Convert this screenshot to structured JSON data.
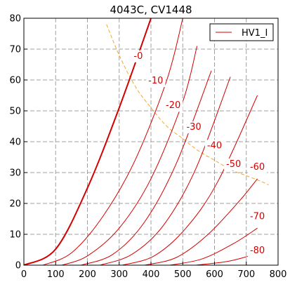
{
  "chart_data": {
    "type": "line",
    "title": "4043C, CV1448",
    "xlabel": "",
    "ylabel": "",
    "xlim": [
      0,
      800
    ],
    "ylim": [
      0,
      80
    ],
    "x_ticks": [
      0,
      100,
      200,
      300,
      400,
      500,
      600,
      700,
      800
    ],
    "y_ticks": [
      0,
      10,
      20,
      30,
      40,
      50,
      60,
      70,
      80
    ],
    "grid": true,
    "legend": {
      "position": "top-right",
      "entries": [
        "HV1_I"
      ]
    },
    "colors": {
      "curve": "#d40000",
      "dissipation": "#f0a830",
      "grid": "#a0a0a0"
    },
    "series": [
      {
        "label": "-0",
        "x": [
          0,
          100,
          200,
          300,
          400
        ],
        "y": [
          0,
          5.2,
          25,
          51,
          80
        ],
        "label_pos": [
          360,
          68
        ]
      },
      {
        "label": "-10",
        "x": [
          60,
          150,
          250,
          350,
          450,
          500
        ],
        "y": [
          0,
          4,
          16,
          34,
          60,
          80
        ],
        "label_pos": [
          415,
          60
        ]
      },
      {
        "label": "-20",
        "x": [
          120,
          200,
          300,
          400,
          500,
          545
        ],
        "y": [
          0,
          3,
          12,
          28,
          53,
          71
        ],
        "label_pos": [
          470,
          52
        ]
      },
      {
        "label": "-30",
        "x": [
          180,
          280,
          380,
          480,
          590
        ],
        "y": [
          0,
          3.5,
          14,
          33,
          63
        ],
        "label_pos": [
          535,
          45
        ]
      },
      {
        "label": "-40",
        "x": [
          240,
          340,
          440,
          540,
          650
        ],
        "y": [
          0,
          3.5,
          13,
          31,
          61
        ],
        "label_pos": [
          600,
          39
        ]
      },
      {
        "label": "-50",
        "x": [
          310,
          410,
          510,
          610,
          735
        ],
        "y": [
          0,
          3,
          12,
          27,
          55
        ],
        "label_pos": [
          660,
          33
        ]
      },
      {
        "label": "-60",
        "x": [
          380,
          480,
          580,
          680,
          735
        ],
        "y": [
          0,
          2.5,
          10,
          21,
          28
        ],
        "label_pos": [
          735,
          32
        ]
      },
      {
        "label": "-70",
        "x": [
          460,
          560,
          660,
          735
        ],
        "y": [
          0,
          2,
          7,
          12
        ],
        "label_pos": [
          735,
          16
        ]
      },
      {
        "label": "-80",
        "x": [
          540,
          640,
          710
        ],
        "y": [
          0,
          1.2,
          3
        ],
        "label_pos": [
          735,
          5
        ]
      }
    ],
    "dissipation_curve": {
      "x": [
        260,
        300,
        350,
        400,
        450,
        500,
        550,
        600,
        650,
        700,
        750,
        770
      ],
      "y": [
        78,
        68,
        58,
        51,
        45,
        41,
        37,
        34,
        31,
        29,
        27,
        26
      ]
    }
  }
}
